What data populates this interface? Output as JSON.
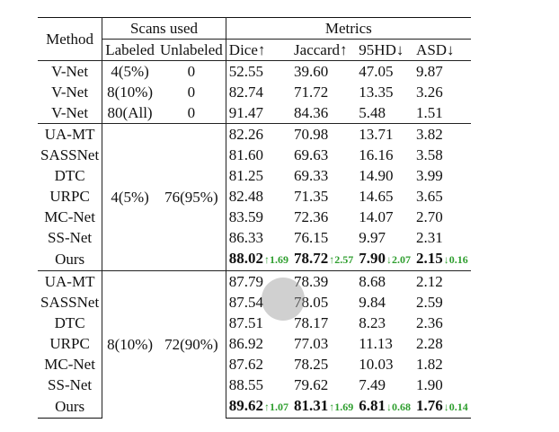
{
  "header": {
    "method": "Method",
    "scans_used": "Scans used",
    "metrics": "Metrics",
    "labeled": "Labeled",
    "unlabeled": "Unlabeled",
    "dice": "Dice↑",
    "jaccard": "Jaccard↑",
    "hd95": "95HD↓",
    "asd": "ASD↓"
  },
  "baselines": [
    {
      "method": "V-Net",
      "labeled": "4(5%)",
      "unlabeled": "0",
      "dice": "52.55",
      "jaccard": "39.60",
      "hd95": "47.05",
      "asd": "9.87"
    },
    {
      "method": "V-Net",
      "labeled": "8(10%)",
      "unlabeled": "0",
      "dice": "82.74",
      "jaccard": "71.72",
      "hd95": "13.35",
      "asd": "3.26"
    },
    {
      "method": "V-Net",
      "labeled": "80(All)",
      "unlabeled": "0",
      "dice": "91.47",
      "jaccard": "84.36",
      "hd95": "5.48",
      "asd": "1.51"
    }
  ],
  "group1": {
    "labeled": "4(5%)",
    "unlabeled": "76(95%)",
    "rows": [
      {
        "method": "UA-MT",
        "dice": "82.26",
        "jaccard": "70.98",
        "hd95": "13.71",
        "asd": "3.82"
      },
      {
        "method": "SASSNet",
        "dice": "81.60",
        "jaccard": "69.63",
        "hd95": "16.16",
        "asd": "3.58"
      },
      {
        "method": "DTC",
        "dice": "81.25",
        "jaccard": "69.33",
        "hd95": "14.90",
        "asd": "3.99"
      },
      {
        "method": "URPC",
        "dice": "82.48",
        "jaccard": "71.35",
        "hd95": "14.65",
        "asd": "3.65"
      },
      {
        "method": "MC-Net",
        "dice": "83.59",
        "jaccard": "72.36",
        "hd95": "14.07",
        "asd": "2.70"
      },
      {
        "method": "SS-Net",
        "dice": "86.33",
        "jaccard": "76.15",
        "hd95": "9.97",
        "asd": "2.31"
      }
    ],
    "ours": {
      "method": "Ours",
      "dice": "88.02",
      "dice_delta": "↑1.69",
      "jaccard": "78.72",
      "jaccard_delta": "↑2.57",
      "hd95": "7.90",
      "hd95_delta": "↓2.07",
      "asd": "2.15",
      "asd_delta": "↓0.16"
    }
  },
  "group2": {
    "labeled": "8(10%)",
    "unlabeled": "72(90%)",
    "rows": [
      {
        "method": "UA-MT",
        "dice": "87.79",
        "jaccard": "78.39",
        "hd95": "8.68",
        "asd": "2.12"
      },
      {
        "method": "SASSNet",
        "dice": "87.54",
        "jaccard": "78.05",
        "hd95": "9.84",
        "asd": "2.59"
      },
      {
        "method": "DTC",
        "dice": "87.51",
        "jaccard": "78.17",
        "hd95": "8.23",
        "asd": "2.36"
      },
      {
        "method": "URPC",
        "dice": "86.92",
        "jaccard": "77.03",
        "hd95": "11.13",
        "asd": "2.28"
      },
      {
        "method": "MC-Net",
        "dice": "87.62",
        "jaccard": "78.25",
        "hd95": "10.03",
        "asd": "1.82"
      },
      {
        "method": "SS-Net",
        "dice": "88.55",
        "jaccard": "79.62",
        "hd95": "7.49",
        "asd": "1.90"
      }
    ],
    "ours": {
      "method": "Ours",
      "dice": "89.62",
      "dice_delta": "↑1.07",
      "jaccard": "81.31",
      "jaccard_delta": "↑1.69",
      "hd95": "6.81",
      "hd95_delta": "↓0.68",
      "asd": "1.76",
      "asd_delta": "↓0.14"
    }
  },
  "colors": {
    "delta": "#2e9e2e",
    "cursor": "#969696"
  }
}
